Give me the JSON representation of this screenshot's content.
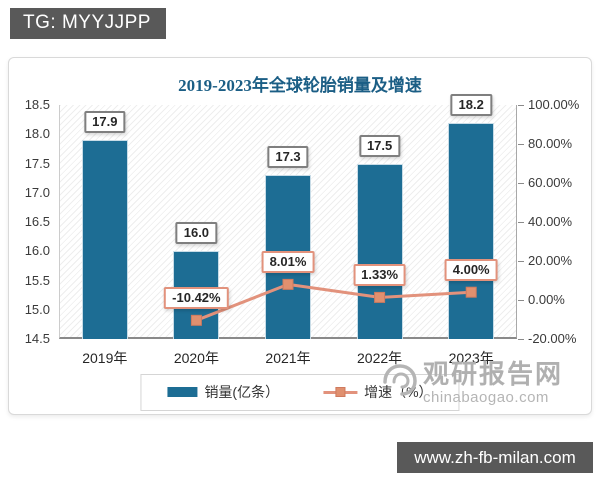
{
  "badge": {
    "label": "TG: MYYJJPP"
  },
  "url_bar": {
    "label": "www.zh-fb-milan.com"
  },
  "watermark": {
    "name": "观研报告网",
    "domain": "chinabaogao.com"
  },
  "chart_data": {
    "type": "bar+line",
    "title": "2019-2023年全球轮胎销量及增速",
    "categories": [
      "2019年",
      "2020年",
      "2021年",
      "2022年",
      "2023年"
    ],
    "series": [
      {
        "name": "销量(亿条）",
        "type": "bar",
        "axis": "left",
        "color": "#1d6d94",
        "values": [
          17.9,
          16.0,
          17.3,
          17.5,
          18.2
        ],
        "labels": [
          "17.9",
          "16.0",
          "17.3",
          "17.5",
          "18.2"
        ]
      },
      {
        "name": "增速（%）",
        "type": "line",
        "axis": "right",
        "color": "#e2927c",
        "marker_color": "#e0906f",
        "values": [
          null,
          -10.42,
          8.01,
          1.33,
          4.0
        ],
        "labels": [
          "",
          "-10.42%",
          "8.01%",
          "1.33%",
          "4.00%"
        ]
      }
    ],
    "left_axis": {
      "min": 14.5,
      "max": 18.5,
      "step": 0.5,
      "ticks": [
        "18.5",
        "18.0",
        "17.5",
        "17.0",
        "16.5",
        "16.0",
        "15.5",
        "15.0",
        "14.5"
      ]
    },
    "right_axis": {
      "min": -20,
      "max": 100,
      "step": 20,
      "ticks": [
        "100.00%",
        "80.00%",
        "60.00%",
        "40.00%",
        "20.00%",
        "0.00%",
        "-20.00%"
      ]
    },
    "legend": [
      {
        "label": "销量(亿条）",
        "type": "bar",
        "color": "#1d6d94"
      },
      {
        "label": "增速（%）",
        "type": "line",
        "color": "#e2927c"
      }
    ],
    "legend_position": "bottom",
    "grid": false
  }
}
